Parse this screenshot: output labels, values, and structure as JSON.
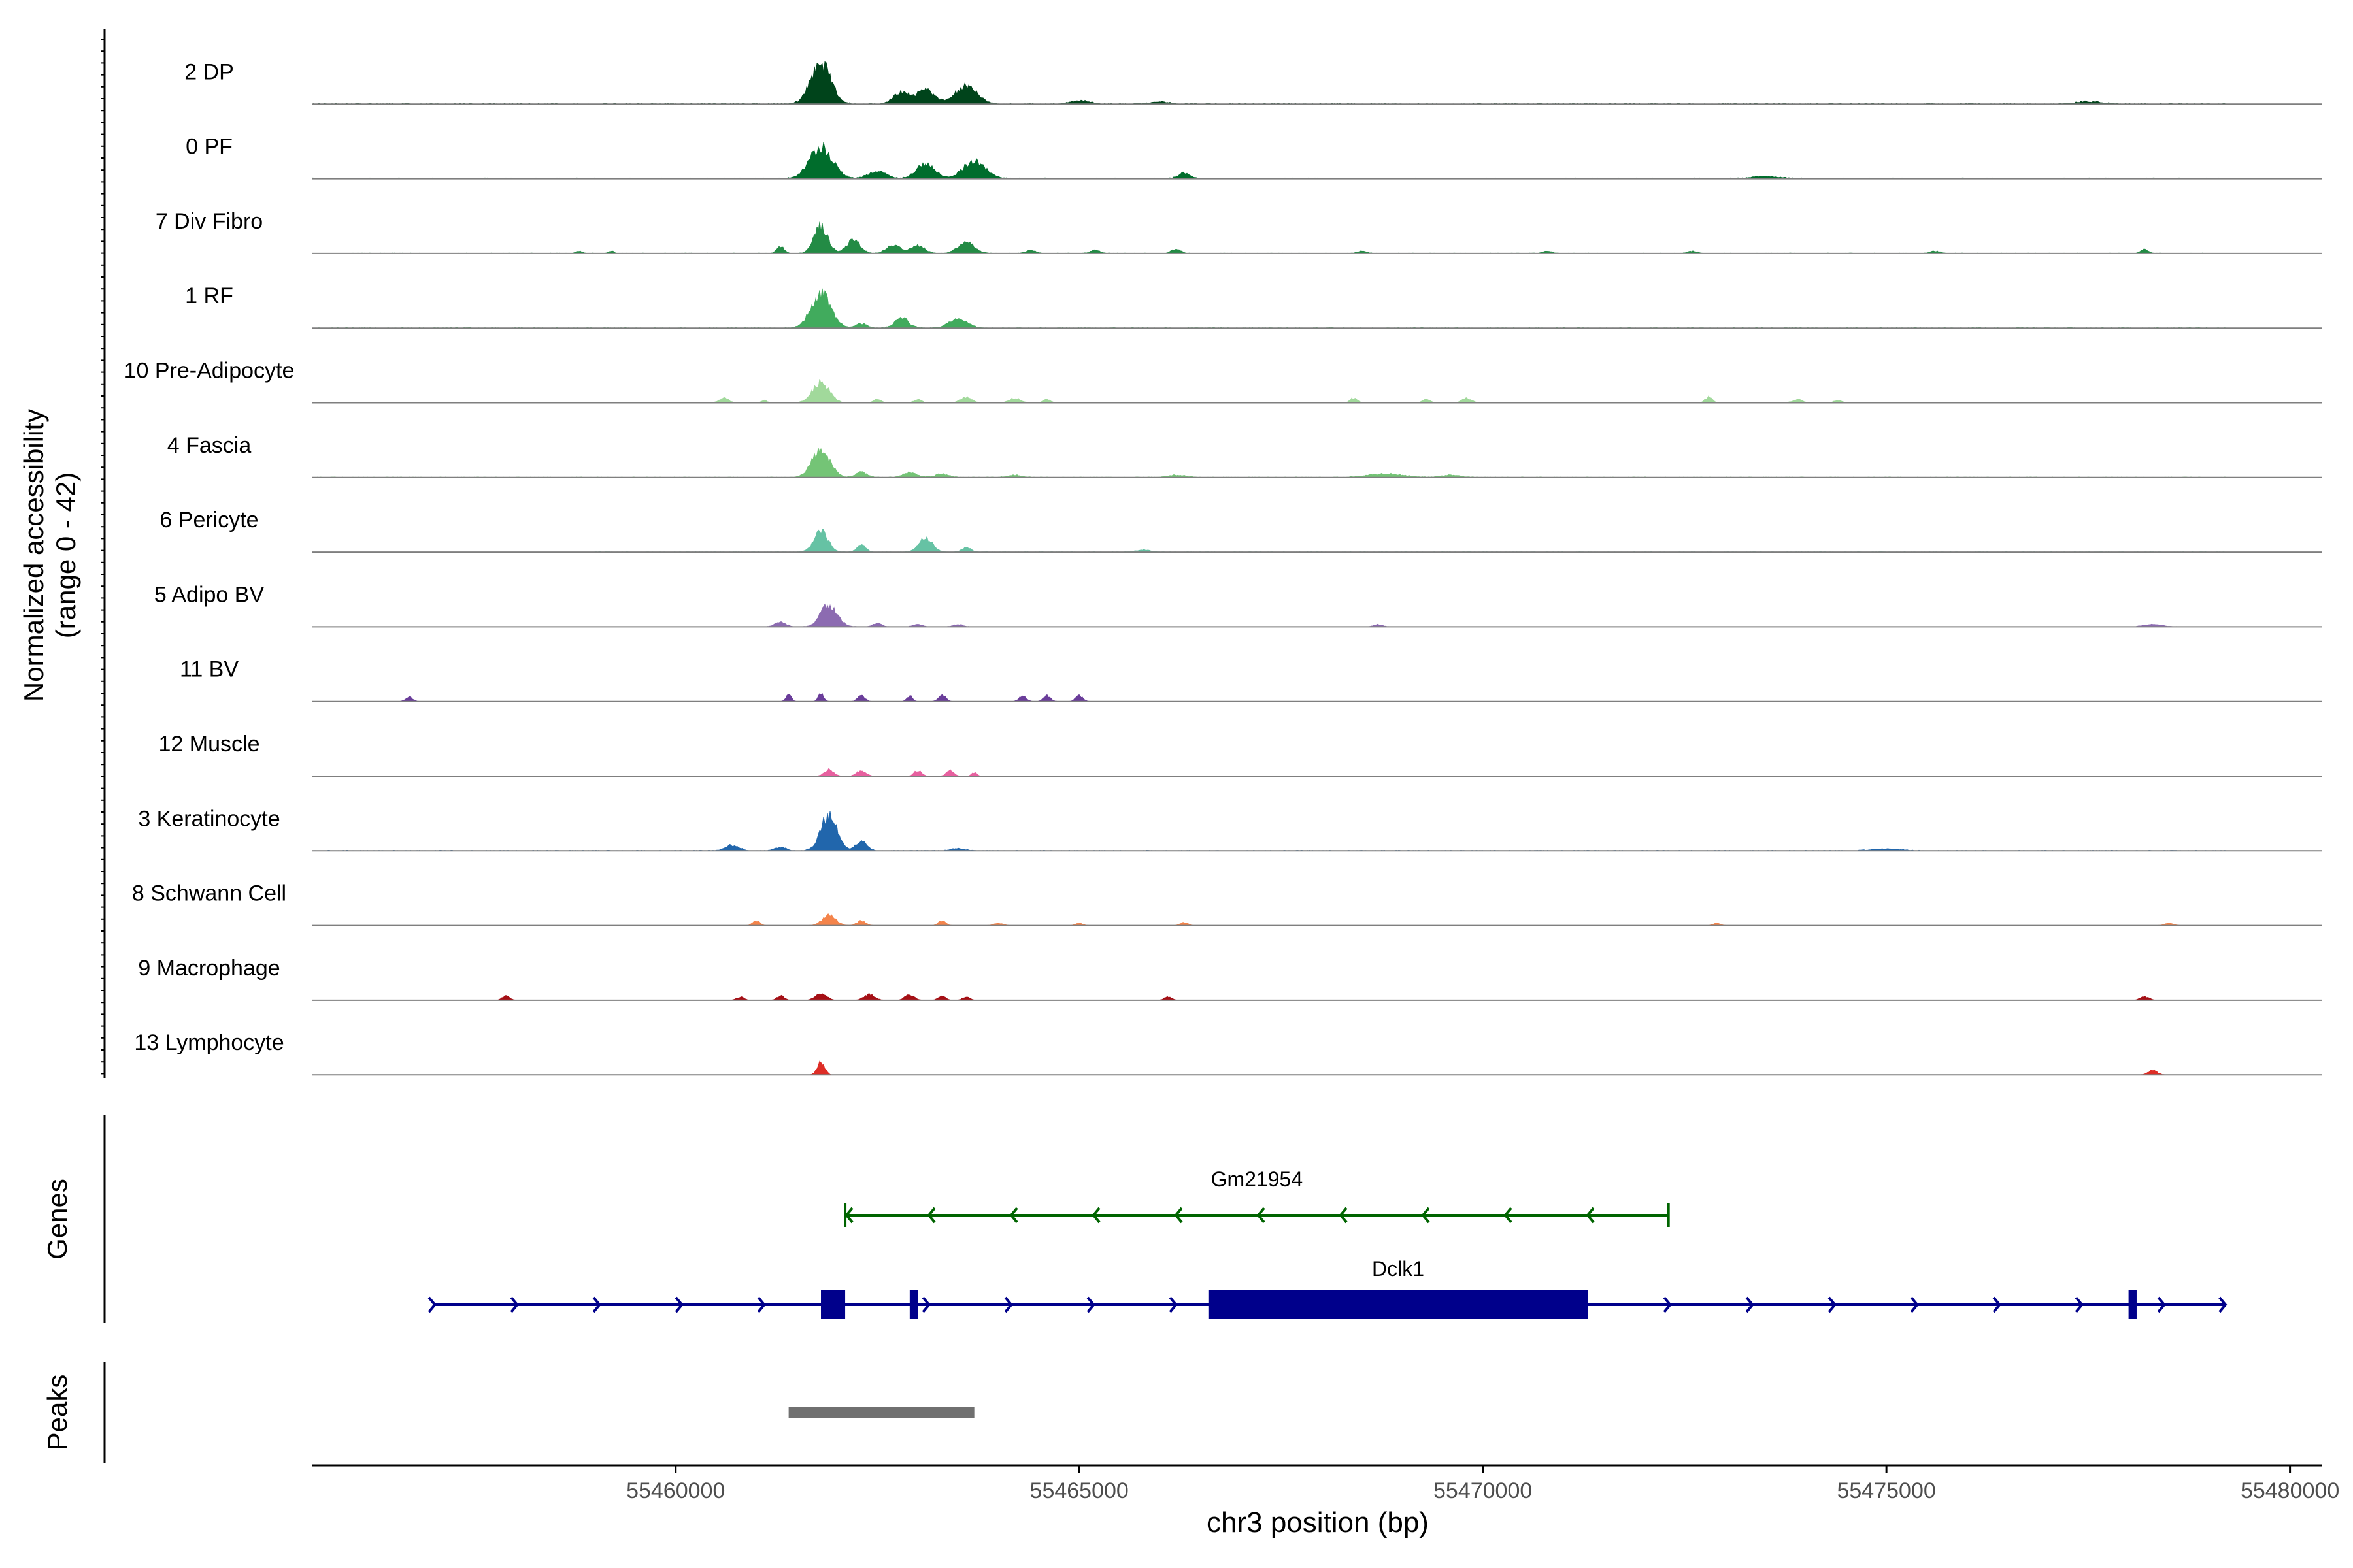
{
  "chart_data": {
    "type": "area",
    "title": "",
    "ylabel_line1": "Normalized accessibility",
    "ylabel_line2": "(range 0 - 42)",
    "yrange": [
      0,
      42
    ],
    "xlabel": "chr3 position (bp)",
    "xlim": [
      55455500,
      55480400
    ],
    "xticks": [
      55460000,
      55465000,
      55470000,
      55475000,
      55480000
    ],
    "xtick_labels": [
      "55460000",
      "55465000",
      "55470000",
      "55475000",
      "55480000"
    ],
    "tracks": [
      {
        "name": "2 DP",
        "color": "#00441b",
        "background": 0.6,
        "range": [
          55455500,
          55479200
        ],
        "peaks": [
          [
            55461800,
            36,
            220
          ],
          [
            55462800,
            10,
            180
          ],
          [
            55463100,
            12,
            200
          ],
          [
            55463600,
            16,
            240
          ],
          [
            55465000,
            3,
            200
          ],
          [
            55466000,
            2,
            200
          ],
          [
            55477500,
            2,
            300
          ]
        ]
      },
      {
        "name": "0 PF",
        "color": "#006d2c",
        "background": 0.6,
        "range": [
          55455500,
          55479200
        ],
        "peaks": [
          [
            55461800,
            28,
            250
          ],
          [
            55462500,
            6,
            200
          ],
          [
            55463100,
            13,
            200
          ],
          [
            55463700,
            15,
            250
          ],
          [
            55466300,
            5,
            120
          ],
          [
            55473500,
            2,
            300
          ]
        ]
      },
      {
        "name": "7 Div Fibro",
        "color": "#238b45",
        "background": 0.3,
        "range": [
          55455500,
          55479200
        ],
        "peaks": [
          [
            55458800,
            2,
            60
          ],
          [
            55459200,
            2,
            60
          ],
          [
            55461300,
            6,
            80
          ],
          [
            55461800,
            24,
            150
          ],
          [
            55462200,
            12,
            150
          ],
          [
            55462700,
            8,
            150
          ],
          [
            55463000,
            7,
            150
          ],
          [
            55463600,
            10,
            180
          ],
          [
            55464400,
            3,
            100
          ],
          [
            55465200,
            3,
            100
          ],
          [
            55466200,
            4,
            100
          ],
          [
            55468500,
            2,
            100
          ],
          [
            55470800,
            2,
            100
          ],
          [
            55472600,
            2,
            100
          ],
          [
            55475600,
            2,
            100
          ],
          [
            55478200,
            4,
            80
          ]
        ]
      },
      {
        "name": "1 RF",
        "color": "#41ab5d",
        "background": 0.4,
        "range": [
          55455500,
          55479200
        ],
        "peaks": [
          [
            55461800,
            30,
            220
          ],
          [
            55462300,
            4,
            120
          ],
          [
            55462800,
            9,
            150
          ],
          [
            55463500,
            8,
            200
          ]
        ]
      },
      {
        "name": "10 Pre-Adipocyte",
        "color": "#a1d99b",
        "background": 0.2,
        "range": [
          55455500,
          55479200
        ],
        "peaks": [
          [
            55460600,
            4,
            100
          ],
          [
            55461100,
            2,
            60
          ],
          [
            55461800,
            18,
            180
          ],
          [
            55462500,
            3,
            80
          ],
          [
            55463000,
            3,
            80
          ],
          [
            55463600,
            5,
            120
          ],
          [
            55464200,
            4,
            120
          ],
          [
            55464600,
            3,
            80
          ],
          [
            55468400,
            4,
            80
          ],
          [
            55469300,
            3,
            80
          ],
          [
            55469800,
            4,
            100
          ],
          [
            55472800,
            5,
            80
          ],
          [
            55473900,
            3,
            100
          ],
          [
            55474400,
            2,
            80
          ]
        ]
      },
      {
        "name": "4 Fascia",
        "color": "#74c476",
        "background": 0.4,
        "range": [
          55455500,
          55479200
        ],
        "peaks": [
          [
            55461800,
            24,
            200
          ],
          [
            55462300,
            5,
            120
          ],
          [
            55462900,
            4,
            150
          ],
          [
            55463300,
            3,
            150
          ],
          [
            55464200,
            2,
            150
          ],
          [
            55466200,
            2,
            200
          ],
          [
            55468800,
            3,
            400
          ],
          [
            55469600,
            2,
            200
          ]
        ]
      },
      {
        "name": "6 Pericyte",
        "color": "#66c2a4",
        "background": 0.3,
        "range": [
          55459000,
          55479200
        ],
        "peaks": [
          [
            55461800,
            20,
            150
          ],
          [
            55462300,
            6,
            100
          ],
          [
            55463100,
            12,
            150
          ],
          [
            55463600,
            4,
            100
          ],
          [
            55465800,
            2,
            150
          ]
        ]
      },
      {
        "name": "5 Adipo BV",
        "color": "#8c6bb1",
        "background": 0.2,
        "range": [
          55455500,
          55479200
        ],
        "peaks": [
          [
            55461300,
            4,
            120
          ],
          [
            55461900,
            20,
            180
          ],
          [
            55462500,
            3,
            100
          ],
          [
            55463000,
            2,
            100
          ],
          [
            55463500,
            2,
            100
          ],
          [
            55468700,
            2,
            100
          ],
          [
            55478300,
            2,
            200
          ]
        ]
      },
      {
        "name": "11 BV",
        "color": "#6a3d9a",
        "background": 0,
        "range": [
          55455500,
          55479200
        ],
        "peaks": [
          [
            55456700,
            4,
            80
          ],
          [
            55461400,
            6,
            60
          ],
          [
            55461800,
            7,
            60
          ],
          [
            55462300,
            5,
            80
          ],
          [
            55462900,
            5,
            60
          ],
          [
            55463300,
            6,
            80
          ],
          [
            55464300,
            5,
            80
          ],
          [
            55464600,
            5,
            80
          ],
          [
            55465000,
            5,
            80
          ]
        ]
      },
      {
        "name": "12 Muscle",
        "color": "#e7609f",
        "background": 0,
        "range": [
          55455500,
          55479200
        ],
        "peaks": [
          [
            55461900,
            6,
            100
          ],
          [
            55462300,
            5,
            100
          ],
          [
            55463000,
            5,
            80
          ],
          [
            55463400,
            5,
            80
          ],
          [
            55463700,
            3,
            60
          ]
        ]
      },
      {
        "name": "3 Keratinocyte",
        "color": "#2166ac",
        "background": 0.4,
        "range": [
          55455500,
          55479200
        ],
        "peaks": [
          [
            55460700,
            5,
            150
          ],
          [
            55461300,
            3,
            120
          ],
          [
            55461900,
            32,
            180
          ],
          [
            55462300,
            8,
            120
          ],
          [
            55463500,
            2,
            150
          ],
          [
            55475000,
            1.5,
            300
          ]
        ]
      },
      {
        "name": "8 Schwann Cell",
        "color": "#f4844b",
        "background": 0,
        "range": [
          55455500,
          55479200
        ],
        "peaks": [
          [
            55461000,
            4,
            80
          ],
          [
            55461900,
            9,
            150
          ],
          [
            55462300,
            4,
            100
          ],
          [
            55463300,
            4,
            80
          ],
          [
            55464000,
            2,
            100
          ],
          [
            55465000,
            2,
            80
          ],
          [
            55466300,
            3,
            80
          ],
          [
            55472900,
            2,
            80
          ],
          [
            55478500,
            2,
            100
          ]
        ]
      },
      {
        "name": "9 Macrophage",
        "color": "#a50f15",
        "background": 0,
        "range": [
          55455500,
          55479200
        ],
        "peaks": [
          [
            55457900,
            4,
            80
          ],
          [
            55460800,
            3,
            80
          ],
          [
            55461300,
            4,
            80
          ],
          [
            55461800,
            6,
            120
          ],
          [
            55462400,
            5,
            120
          ],
          [
            55462900,
            5,
            100
          ],
          [
            55463300,
            4,
            80
          ],
          [
            55463600,
            3,
            80
          ],
          [
            55466100,
            3,
            80
          ],
          [
            55478200,
            3,
            100
          ]
        ]
      },
      {
        "name": "13 Lymphocyte",
        "color": "#de2d26",
        "background": 0,
        "range": [
          55455500,
          55479200
        ],
        "peaks": [
          [
            55461800,
            12,
            80
          ],
          [
            55478300,
            4,
            100
          ]
        ]
      }
    ],
    "genes_label": "Genes",
    "genes": [
      {
        "name": "Gm21954",
        "color": "#006400",
        "strand": "-",
        "start": 55462100,
        "end": 55472300,
        "exons": []
      },
      {
        "name": "Dclk1",
        "color": "#00008b",
        "strand": "+",
        "start": 55457000,
        "end": 55479200,
        "exons": [
          [
            55461800,
            55462100
          ],
          [
            55462900,
            55463000
          ],
          [
            55466600,
            55471300
          ],
          [
            55478000,
            55478100
          ]
        ]
      }
    ],
    "peaks_label": "Peaks",
    "peak_regions": [
      [
        55461400,
        55463700
      ]
    ],
    "peak_color": "#707070"
  }
}
